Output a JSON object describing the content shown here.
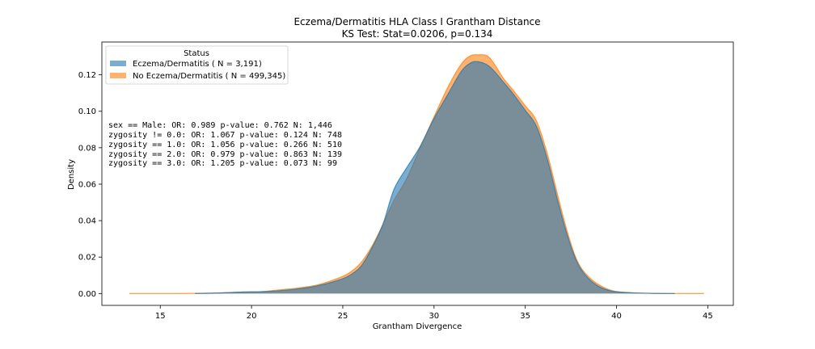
{
  "chart_data": {
    "type": "area",
    "title": "Eczema/Dermatitis HLA Class I Grantham Distance",
    "subtitle": "KS Test: Stat=0.0206, p=0.134",
    "xlabel": "Grantham Divergence",
    "ylabel": "Density",
    "xlim": [
      11.8,
      46.4
    ],
    "ylim": [
      -0.0065,
      0.138
    ],
    "xticks": [
      15,
      20,
      25,
      30,
      35,
      40,
      45
    ],
    "yticks": [
      0.0,
      0.02,
      0.04,
      0.06,
      0.08,
      0.1,
      0.12
    ],
    "ytick_labels": [
      "0.00",
      "0.02",
      "0.04",
      "0.06",
      "0.08",
      "0.10",
      "0.12"
    ],
    "grid": false,
    "legend": {
      "title": "Status",
      "placement": "top-left",
      "entries": [
        "Eczema/Dermatitis ( N = 3,191)",
        "No Eczema/Dermatitis ( N = 499,345)"
      ]
    },
    "annotations": [
      "sex == Male: OR: 0.989 p-value: 0.762 N: 1,446",
      "zygosity != 0.0: OR: 1.067 p-value: 0.124 N: 748",
      "zygosity == 1.0: OR: 1.056 p-value: 0.266 N: 510",
      "zygosity == 2.0: OR: 0.979 p-value: 0.863 N: 139",
      "zygosity == 3.0: OR: 1.205 p-value: 0.073 N: 99"
    ],
    "series": [
      {
        "name": "No Eczema/Dermatitis ( N = 499,345)",
        "color": "#ff7f0e",
        "opacity": 0.6,
        "x": [
          13.3,
          16,
          18,
          19.5,
          20.5,
          21.5,
          22.5,
          23.5,
          24.5,
          25.3,
          26,
          26.6,
          27.2,
          27.8,
          28.5,
          29.2,
          30,
          30.8,
          31.5,
          32,
          32.4,
          32.9,
          33.3,
          33.8,
          34.3,
          35,
          35.6,
          36.2,
          36.8,
          37.3,
          37.8,
          38.3,
          39,
          39.8,
          40.8,
          42,
          43.5,
          44.8
        ],
        "y": [
          0,
          0,
          0.0003,
          0.0008,
          0.001,
          0.002,
          0.003,
          0.0045,
          0.0075,
          0.011,
          0.017,
          0.026,
          0.038,
          0.051,
          0.063,
          0.079,
          0.097,
          0.114,
          0.126,
          0.1305,
          0.131,
          0.1305,
          0.126,
          0.118,
          0.112,
          0.103,
          0.095,
          0.077,
          0.053,
          0.034,
          0.019,
          0.011,
          0.005,
          0.0015,
          0.0005,
          0.0001,
          0,
          0
        ]
      },
      {
        "name": "Eczema/Dermatitis ( N = 3,191)",
        "color": "#1f77b4",
        "opacity": 0.6,
        "x": [
          16.9,
          18,
          19.5,
          20.5,
          21.5,
          22.5,
          23.5,
          24.5,
          25.3,
          26,
          26.6,
          27.2,
          27.8,
          28.5,
          29.2,
          30,
          30.8,
          31.5,
          32,
          32.4,
          32.9,
          33.3,
          33.8,
          34.3,
          35,
          35.6,
          36.2,
          36.8,
          37.3,
          37.8,
          38.3,
          39,
          39.8,
          40.8,
          42,
          43.2
        ],
        "y": [
          0,
          0.0002,
          0.0008,
          0.001,
          0.0015,
          0.0025,
          0.004,
          0.0065,
          0.0095,
          0.015,
          0.025,
          0.038,
          0.057,
          0.069,
          0.08,
          0.096,
          0.11,
          0.122,
          0.1265,
          0.1272,
          0.1255,
          0.122,
          0.116,
          0.11,
          0.1005,
          0.092,
          0.074,
          0.05,
          0.032,
          0.018,
          0.01,
          0.004,
          0.0012,
          0.0004,
          0.0001,
          0
        ]
      }
    ]
  }
}
